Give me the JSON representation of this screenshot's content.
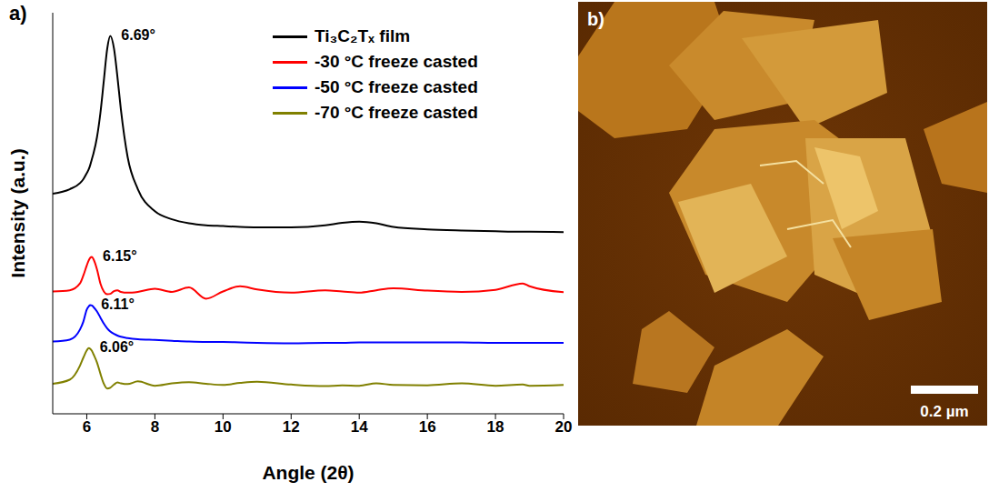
{
  "chart_data": {
    "type": "line",
    "panel_label": "a)",
    "x_label": "Angle (2θ)",
    "y_label": "Intensity (a.u.)",
    "x": [
      5,
      5.5,
      5.8,
      5.9,
      6.0,
      6.06,
      6.1,
      6.15,
      6.2,
      6.3,
      6.4,
      6.5,
      6.6,
      6.69,
      6.8,
      6.9,
      7.0,
      7.2,
      7.5,
      8,
      8.5,
      9,
      9.5,
      10,
      10.5,
      11,
      12,
      13,
      13.5,
      14,
      14.5,
      15,
      16,
      17,
      18,
      18.8,
      19,
      20
    ],
    "series": [
      {
        "name": "Ti₃C₂Tₓ film",
        "color": "#000000",
        "annotation": "6.69°",
        "values": [
          54.9,
          56,
          57.5,
          58.5,
          60,
          61,
          62,
          63.5,
          65,
          69,
          75,
          83,
          91,
          94.2,
          91,
          84,
          76,
          64,
          56,
          50.5,
          48.5,
          47.5,
          47,
          46.8,
          46.6,
          46.5,
          46.5,
          47,
          47.6,
          47.9,
          47.5,
          46.6,
          46,
          45.7,
          45.5,
          45.4,
          45.4,
          45.3
        ]
      },
      {
        "name": "-30 °C freeze casted",
        "color": "#ff0000",
        "annotation": "6.15°",
        "values": [
          30.5,
          30.8,
          32.5,
          34.5,
          37,
          38.3,
          38.9,
          39.1,
          38.5,
          36,
          32.5,
          30.5,
          29.8,
          29.9,
          30.6,
          30.8,
          30.4,
          30.2,
          30.4,
          31.2,
          30.4,
          31.5,
          28.7,
          30.5,
          31.8,
          31.0,
          30.2,
          30.8,
          30.5,
          30.2,
          30.8,
          31.3,
          30.7,
          30.4,
          30.9,
          32.5,
          31.8,
          30.3
        ]
      },
      {
        "name": "-50 °C freeze casted",
        "color": "#0000ff",
        "annotation": "6.11°",
        "values": [
          18,
          18.5,
          21,
          23,
          26,
          26.8,
          27.1,
          27,
          26.6,
          25.5,
          24,
          22.5,
          21.3,
          20.5,
          19.9,
          19.5,
          19.2,
          18.9,
          18.6,
          18.4,
          18.2,
          18.0,
          17.9,
          17.9,
          17.8,
          17.7,
          17.6,
          17.7,
          17.7,
          17.8,
          17.8,
          17.8,
          17.8,
          17.8,
          17.7,
          17.7,
          17.7,
          17.7
        ]
      },
      {
        "name": "-70 °C freeze casted",
        "color": "#808000",
        "annotation": "6.06°",
        "values": [
          7.5,
          8.5,
          12,
          14,
          15.8,
          16.4,
          16.2,
          15.7,
          14.8,
          12.8,
          10,
          7.5,
          6.3,
          6.5,
          7.3,
          7.8,
          7.6,
          7.4,
          8.1,
          7.0,
          7.6,
          7.9,
          7.5,
          7.2,
          7.7,
          8.0,
          7.3,
          6.9,
          7.1,
          7.0,
          7.6,
          7.2,
          7.1,
          7.6,
          7.0,
          7.3,
          7.0,
          7.2
        ]
      }
    ],
    "xlim": [
      5,
      20
    ],
    "xticks": [
      6,
      8,
      10,
      12,
      14,
      16,
      18,
      20
    ],
    "ylim": [
      0,
      100
    ],
    "tick_labels": "x",
    "legend": "upper right",
    "grid": false
  },
  "image": {
    "panel_label": "b)",
    "scale_bar": "0.2 µm"
  }
}
